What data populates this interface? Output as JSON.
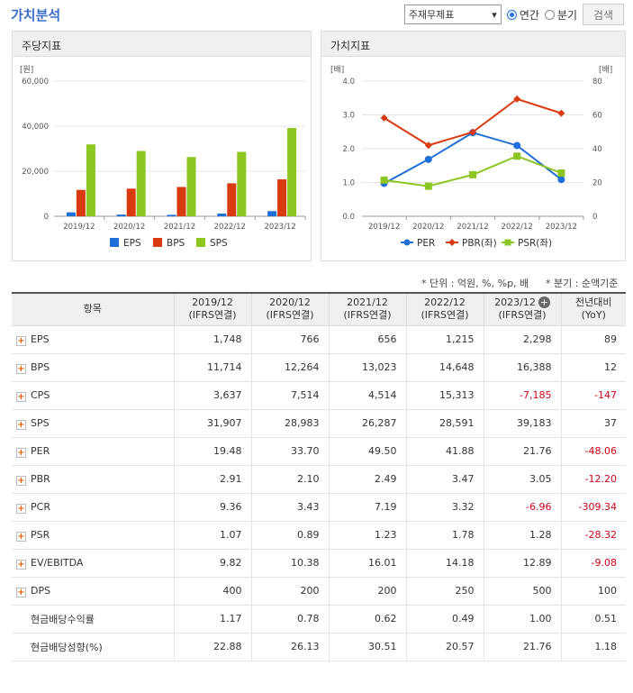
{
  "title": "가치분석",
  "controls": {
    "select_value": "주재무제표",
    "radio_annual": "연간",
    "radio_quarter": "분기",
    "search_button": "검색"
  },
  "panel_left_title": "주당지표",
  "panel_right_title": "가치지표",
  "chart_data": [
    {
      "type": "bar",
      "unit_label": "[원]",
      "categories": [
        "2019/12",
        "2020/12",
        "2021/12",
        "2022/12",
        "2023/12"
      ],
      "ylim": [
        0,
        60000
      ],
      "yticks": [
        "0",
        "20,000",
        "40,000",
        "60,000"
      ],
      "series": [
        {
          "name": "EPS",
          "color": "#1f6fd8",
          "values": [
            1748,
            766,
            656,
            1215,
            2298
          ]
        },
        {
          "name": "BPS",
          "color": "#d93a10",
          "values": [
            11714,
            12264,
            13023,
            14648,
            16388
          ]
        },
        {
          "name": "SPS",
          "color": "#8dc620",
          "values": [
            31907,
            28983,
            26287,
            28591,
            39183
          ]
        }
      ],
      "legend": "bottom"
    },
    {
      "type": "line",
      "unit_left": "[배]",
      "unit_right": "[배]",
      "categories": [
        "2019/12",
        "2020/12",
        "2021/12",
        "2022/12",
        "2023/12"
      ],
      "ylim_left": [
        0,
        4
      ],
      "ylim_right": [
        0,
        80
      ],
      "yticks_left": [
        "0.0",
        "1.0",
        "2.0",
        "3.0",
        "4.0"
      ],
      "yticks_right": [
        "0",
        "20",
        "40",
        "60",
        "80"
      ],
      "series": [
        {
          "name": "PER",
          "color": "#1f6fd8",
          "marker": "circle",
          "axis": "right",
          "values": [
            19.48,
            33.7,
            49.5,
            41.88,
            21.76
          ]
        },
        {
          "name": "PBR(좌)",
          "color": "#d93a10",
          "marker": "diamond",
          "axis": "left",
          "values": [
            2.91,
            2.1,
            2.49,
            3.47,
            3.05
          ]
        },
        {
          "name": "PSR(좌)",
          "color": "#8dc620",
          "marker": "square",
          "axis": "left",
          "values": [
            1.07,
            0.89,
            1.23,
            1.78,
            1.28
          ]
        }
      ],
      "legend": "bottom"
    }
  ],
  "note_unit": "* 단위 : 억원, %, %p, 배",
  "note_quarter": "* 분기 : 순액기준",
  "table": {
    "header_item": "항목",
    "columns": [
      {
        "line1": "2019/12",
        "line2": "(IFRS연결)"
      },
      {
        "line1": "2020/12",
        "line2": "(IFRS연결)"
      },
      {
        "line1": "2021/12",
        "line2": "(IFRS연결)"
      },
      {
        "line1": "2022/12",
        "line2": "(IFRS연결)"
      },
      {
        "line1": "2023/12",
        "line2": "(IFRS연결)"
      },
      {
        "line1": "전년대비",
        "line2": "(YoY)"
      }
    ],
    "rows": [
      {
        "label": "EPS",
        "expand": true,
        "values": [
          "1,748",
          "766",
          "656",
          "1,215",
          "2,298",
          "89"
        ]
      },
      {
        "label": "BPS",
        "expand": true,
        "values": [
          "11,714",
          "12,264",
          "13,023",
          "14,648",
          "16,388",
          "12"
        ]
      },
      {
        "label": "CPS",
        "expand": true,
        "values": [
          "3,637",
          "7,514",
          "4,514",
          "15,313",
          "-7,185",
          "-147"
        ]
      },
      {
        "label": "SPS",
        "expand": true,
        "values": [
          "31,907",
          "28,983",
          "26,287",
          "28,591",
          "39,183",
          "37"
        ]
      },
      {
        "label": "PER",
        "expand": true,
        "values": [
          "19.48",
          "33.70",
          "49.50",
          "41.88",
          "21.76",
          "-48.06"
        ]
      },
      {
        "label": "PBR",
        "expand": true,
        "values": [
          "2.91",
          "2.10",
          "2.49",
          "3.47",
          "3.05",
          "-12.20"
        ]
      },
      {
        "label": "PCR",
        "expand": true,
        "values": [
          "9.36",
          "3.43",
          "7.19",
          "3.32",
          "-6.96",
          "-309.34"
        ]
      },
      {
        "label": "PSR",
        "expand": true,
        "values": [
          "1.07",
          "0.89",
          "1.23",
          "1.78",
          "1.28",
          "-28.32"
        ]
      },
      {
        "label": "EV/EBITDA",
        "expand": true,
        "values": [
          "9.82",
          "10.38",
          "16.01",
          "14.18",
          "12.89",
          "-9.08"
        ]
      },
      {
        "label": "DPS",
        "expand": true,
        "values": [
          "400",
          "200",
          "200",
          "250",
          "500",
          "100"
        ]
      },
      {
        "label": "현금배당수익률",
        "expand": false,
        "values": [
          "1.17",
          "0.78",
          "0.62",
          "0.49",
          "1.00",
          "0.51"
        ]
      },
      {
        "label": "현금배당성향(%)",
        "expand": false,
        "values": [
          "22.88",
          "26.13",
          "30.51",
          "20.57",
          "21.76",
          "1.18"
        ]
      }
    ]
  }
}
